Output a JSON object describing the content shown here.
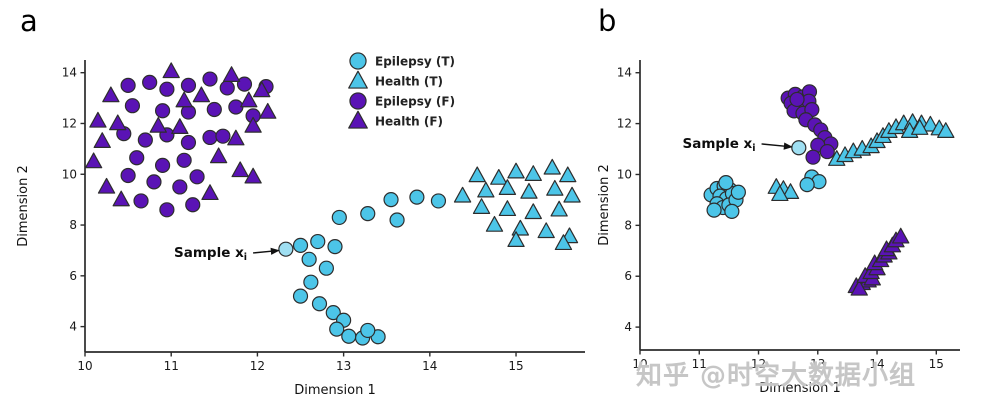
{
  "figure": {
    "panel_a_letter": "a",
    "panel_b_letter": "b"
  },
  "watermark": {
    "text": "知乎 @时空大数据小组"
  },
  "colors": {
    "cyan": "#4cc5e8",
    "purple": "#5a13b5",
    "sample_highlight": "#9fdff2",
    "marker_outline": "#2d2d2d"
  },
  "chart_data": [
    {
      "type": "scatter",
      "panel": "a",
      "xlabel": "Dimension 1",
      "ylabel": "Dimension 2",
      "xlim": [
        10,
        15.8
      ],
      "ylim": [
        3.0,
        14.5
      ],
      "xticks": [
        10,
        11,
        12,
        13,
        14,
        15
      ],
      "yticks": [
        4,
        6,
        8,
        10,
        12,
        14
      ],
      "grid": false,
      "legend": {
        "show": true,
        "position": "upper center-right",
        "entries": [
          "Epilepsy (T)",
          "Health (T)",
          "Epilepsy (F)",
          "Health (F)"
        ]
      },
      "series": [
        {
          "name": "Epilepsy (T)",
          "marker": "circle",
          "color": "#4cc5e8",
          "points": [
            [
              12.5,
              7.2
            ],
            [
              12.7,
              7.35
            ],
            [
              12.9,
              7.15
            ],
            [
              12.6,
              6.65
            ],
            [
              12.8,
              6.3
            ],
            [
              12.62,
              5.75
            ],
            [
              12.5,
              5.2
            ],
            [
              12.72,
              4.9
            ],
            [
              12.88,
              4.55
            ],
            [
              13.0,
              4.25
            ],
            [
              12.92,
              3.9
            ],
            [
              13.06,
              3.62
            ],
            [
              13.22,
              3.55
            ],
            [
              13.4,
              3.6
            ],
            [
              13.28,
              3.85
            ],
            [
              12.95,
              8.3
            ],
            [
              13.28,
              8.45
            ],
            [
              13.55,
              9.0
            ],
            [
              13.85,
              9.1
            ],
            [
              13.62,
              8.2
            ],
            [
              14.1,
              8.95
            ]
          ]
        },
        {
          "name": "Health (T)",
          "marker": "triangle",
          "color": "#4cc5e8",
          "points": [
            [
              14.38,
              9.15
            ],
            [
              14.55,
              9.95
            ],
            [
              14.8,
              9.85
            ],
            [
              15.0,
              10.1
            ],
            [
              15.2,
              10.0
            ],
            [
              15.42,
              10.25
            ],
            [
              15.6,
              9.95
            ],
            [
              14.65,
              9.35
            ],
            [
              14.9,
              9.45
            ],
            [
              15.15,
              9.3
            ],
            [
              15.45,
              9.42
            ],
            [
              15.65,
              9.15
            ],
            [
              14.6,
              8.7
            ],
            [
              14.9,
              8.62
            ],
            [
              15.2,
              8.5
            ],
            [
              15.5,
              8.6
            ],
            [
              14.75,
              8.0
            ],
            [
              15.05,
              7.85
            ],
            [
              15.35,
              7.75
            ],
            [
              15.62,
              7.55
            ],
            [
              15.0,
              7.4
            ],
            [
              15.55,
              7.28
            ]
          ]
        },
        {
          "name": "Epilepsy (F)",
          "marker": "circle",
          "color": "#5a13b5",
          "points": [
            [
              10.5,
              13.5
            ],
            [
              10.75,
              13.62
            ],
            [
              10.95,
              13.35
            ],
            [
              11.2,
              13.5
            ],
            [
              11.45,
              13.75
            ],
            [
              11.65,
              13.4
            ],
            [
              11.85,
              13.55
            ],
            [
              12.1,
              13.45
            ],
            [
              10.55,
              12.7
            ],
            [
              10.9,
              12.5
            ],
            [
              11.2,
              12.45
            ],
            [
              11.5,
              12.55
            ],
            [
              11.75,
              12.65
            ],
            [
              11.95,
              12.3
            ],
            [
              10.45,
              11.6
            ],
            [
              10.7,
              11.35
            ],
            [
              10.95,
              11.55
            ],
            [
              11.2,
              11.25
            ],
            [
              11.45,
              11.45
            ],
            [
              11.6,
              11.5
            ],
            [
              10.6,
              10.65
            ],
            [
              10.9,
              10.35
            ],
            [
              11.15,
              10.55
            ],
            [
              10.5,
              9.95
            ],
            [
              10.8,
              9.7
            ],
            [
              11.1,
              9.5
            ],
            [
              11.3,
              9.9
            ],
            [
              10.65,
              8.95
            ],
            [
              10.95,
              8.6
            ],
            [
              11.25,
              8.8
            ]
          ]
        },
        {
          "name": "Health (F)",
          "marker": "triangle",
          "color": "#5a13b5",
          "points": [
            [
              10.3,
              13.1
            ],
            [
              11.0,
              14.05
            ],
            [
              11.7,
              13.9
            ],
            [
              11.35,
              13.1
            ],
            [
              11.15,
              12.9
            ],
            [
              12.05,
              13.3
            ],
            [
              11.9,
              12.9
            ],
            [
              12.12,
              12.45
            ],
            [
              10.15,
              12.1
            ],
            [
              10.38,
              12.0
            ],
            [
              10.85,
              11.9
            ],
            [
              11.1,
              11.85
            ],
            [
              11.95,
              11.9
            ],
            [
              11.75,
              11.4
            ],
            [
              10.2,
              11.3
            ],
            [
              10.1,
              10.5
            ],
            [
              11.55,
              10.7
            ],
            [
              11.8,
              10.15
            ],
            [
              11.95,
              9.9
            ],
            [
              10.25,
              9.5
            ],
            [
              11.45,
              9.25
            ],
            [
              10.42,
              9.0
            ]
          ]
        }
      ],
      "sample_point": {
        "label": "Sample x_i",
        "marker": "circle",
        "color": "#9fdff2",
        "xy": [
          12.33,
          7.05
        ]
      },
      "annotation": {
        "text": "Sample x",
        "subscript": "i",
        "label_xy": [
          11.88,
          6.9
        ],
        "arrow_tip_xy": [
          12.26,
          7.0
        ]
      }
    },
    {
      "type": "scatter",
      "panel": "b",
      "xlabel": "Dimension 1",
      "ylabel": "Dimension 2",
      "xlim": [
        10,
        15.4
      ],
      "ylim": [
        3.1,
        14.5
      ],
      "xticks": [
        10,
        11,
        12,
        13,
        14,
        15
      ],
      "yticks": [
        4,
        6,
        8,
        10,
        12,
        14
      ],
      "grid": false,
      "legend": {
        "show": false,
        "position": null,
        "entries": []
      },
      "series": [
        {
          "name": "Epilepsy (T)",
          "marker": "circle",
          "color": "#4cc5e8",
          "points": [
            [
              11.2,
              9.2
            ],
            [
              11.3,
              9.45
            ],
            [
              11.42,
              9.55
            ],
            [
              11.52,
              9.4
            ],
            [
              11.35,
              9.15
            ],
            [
              11.46,
              9.05
            ],
            [
              11.56,
              9.25
            ],
            [
              11.3,
              8.85
            ],
            [
              11.4,
              8.7
            ],
            [
              11.5,
              8.8
            ],
            [
              11.62,
              9.0
            ],
            [
              11.25,
              8.6
            ],
            [
              11.55,
              8.55
            ],
            [
              11.66,
              9.3
            ],
            [
              11.45,
              9.68
            ],
            [
              12.9,
              9.9
            ],
            [
              13.02,
              9.72
            ],
            [
              12.82,
              9.6
            ]
          ]
        },
        {
          "name": "Health (T)",
          "marker": "triangle",
          "color": "#4cc5e8",
          "points": [
            [
              12.3,
              9.5
            ],
            [
              12.42,
              9.42
            ],
            [
              12.54,
              9.3
            ],
            [
              12.36,
              9.22
            ],
            [
              13.32,
              10.6
            ],
            [
              13.46,
              10.75
            ],
            [
              13.6,
              10.9
            ],
            [
              13.75,
              11.0
            ],
            [
              13.9,
              11.1
            ],
            [
              14.0,
              11.3
            ],
            [
              14.1,
              11.5
            ],
            [
              14.2,
              11.7
            ],
            [
              14.32,
              11.85
            ],
            [
              14.45,
              12.0
            ],
            [
              14.6,
              12.05
            ],
            [
              14.75,
              12.0
            ],
            [
              14.9,
              11.95
            ],
            [
              15.05,
              11.8
            ],
            [
              15.16,
              11.7
            ],
            [
              14.55,
              11.7
            ],
            [
              14.72,
              11.82
            ]
          ]
        },
        {
          "name": "Epilepsy (F)",
          "marker": "circle",
          "color": "#5a13b5",
          "points": [
            [
              12.5,
              13.0
            ],
            [
              12.62,
              13.15
            ],
            [
              12.75,
              13.05
            ],
            [
              12.86,
              13.25
            ],
            [
              12.55,
              12.8
            ],
            [
              12.7,
              12.7
            ],
            [
              12.85,
              12.88
            ],
            [
              12.6,
              12.5
            ],
            [
              12.75,
              12.4
            ],
            [
              12.9,
              12.55
            ],
            [
              12.65,
              12.95
            ],
            [
              12.8,
              12.15
            ],
            [
              12.95,
              11.95
            ],
            [
              13.05,
              11.75
            ],
            [
              13.12,
              11.45
            ],
            [
              13.22,
              11.2
            ],
            [
              13.0,
              11.15
            ],
            [
              13.16,
              10.9
            ],
            [
              12.92,
              10.68
            ]
          ]
        },
        {
          "name": "Health (F)",
          "marker": "triangle",
          "color": "#5a13b5",
          "points": [
            [
              13.65,
              5.6
            ],
            [
              13.75,
              5.72
            ],
            [
              13.85,
              5.82
            ],
            [
              13.7,
              5.5
            ],
            [
              13.8,
              6.0
            ],
            [
              13.92,
              5.9
            ],
            [
              13.9,
              6.15
            ],
            [
              14.0,
              6.3
            ],
            [
              13.96,
              6.5
            ],
            [
              14.06,
              6.62
            ],
            [
              14.12,
              6.8
            ],
            [
              14.2,
              6.92
            ],
            [
              14.16,
              7.05
            ],
            [
              14.26,
              7.2
            ],
            [
              14.32,
              7.4
            ],
            [
              14.4,
              7.55
            ]
          ]
        }
      ],
      "sample_point": {
        "label": "Sample x_i",
        "marker": "circle",
        "color": "#9fdff2",
        "xy": [
          12.68,
          11.05
        ]
      },
      "annotation": {
        "text": "Sample x",
        "subscript": "i",
        "label_xy": [
          11.95,
          11.2
        ],
        "arrow_tip_xy": [
          12.58,
          11.08
        ]
      }
    }
  ]
}
